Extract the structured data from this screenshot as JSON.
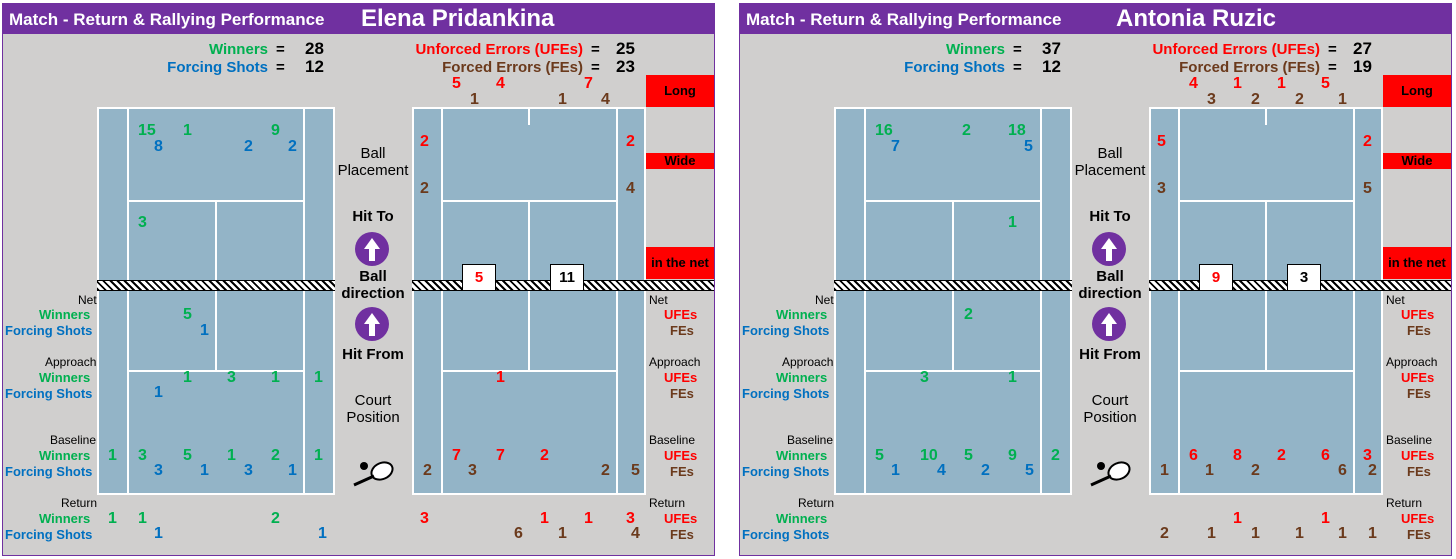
{
  "panels": [
    {
      "title": "Match - Return & Rallying Performance",
      "player": "Elena Pridankina",
      "summary": {
        "winners_label": "Winners",
        "winners": "28",
        "forcing_label": "Forcing Shots",
        "forcing": "12",
        "ufe_label": "Unforced Errors (UFEs)",
        "ufe": "25",
        "fe_label": "Forced Errors (FEs)",
        "fe": "23"
      },
      "eq": "=",
      "boxes": {
        "long": "Long",
        "wide": "Wide",
        "net": "in the net"
      },
      "mid": {
        "placement": "Ball Placement",
        "hit_to": "Hit To",
        "direction": "Ball direction",
        "hit_from": "Hit From",
        "court_position": "Court Position"
      },
      "rows": {
        "net": "Net",
        "approach": "Approach",
        "baseline": "Baseline",
        "return": "Return",
        "winners": "Winners",
        "forcing": "Forcing Shots",
        "ufes": "UFEs",
        "fes": "FEs"
      },
      "net_counts": [
        "5",
        "11"
      ],
      "left_nums": [
        {
          "v": "15",
          "c": "g"
        },
        {
          "v": "1",
          "c": "g"
        },
        {
          "v": "9",
          "c": "g"
        },
        {
          "v": "8",
          "c": "b"
        },
        {
          "v": "2",
          "c": "b"
        },
        {
          "v": "2",
          "c": "b"
        },
        {
          "v": "3",
          "c": "g"
        },
        {
          "v": "5",
          "c": "g"
        },
        {
          "v": "1",
          "c": "b"
        },
        {
          "v": "1",
          "c": "g"
        },
        {
          "v": "3",
          "c": "g"
        },
        {
          "v": "1",
          "c": "g"
        },
        {
          "v": "1",
          "c": "g"
        },
        {
          "v": "1",
          "c": "b"
        },
        {
          "v": "1",
          "c": "g"
        },
        {
          "v": "3",
          "c": "g"
        },
        {
          "v": "5",
          "c": "g"
        },
        {
          "v": "1",
          "c": "g"
        },
        {
          "v": "2",
          "c": "g"
        },
        {
          "v": "1",
          "c": "g"
        },
        {
          "v": "3",
          "c": "b"
        },
        {
          "v": "1",
          "c": "b"
        },
        {
          "v": "3",
          "c": "b"
        },
        {
          "v": "1",
          "c": "b"
        },
        {
          "v": "1",
          "c": "g"
        },
        {
          "v": "1",
          "c": "g"
        },
        {
          "v": "2",
          "c": "g"
        },
        {
          "v": "1",
          "c": "b"
        },
        {
          "v": "1",
          "c": "b"
        }
      ],
      "right_nums": [
        {
          "v": "5",
          "c": "r"
        },
        {
          "v": "4",
          "c": "r"
        },
        {
          "v": "7",
          "c": "r"
        },
        {
          "v": "1",
          "c": "br"
        },
        {
          "v": "1",
          "c": "br"
        },
        {
          "v": "4",
          "c": "br"
        },
        {
          "v": "2",
          "c": "r"
        },
        {
          "v": "2",
          "c": "r"
        },
        {
          "v": "2",
          "c": "br"
        },
        {
          "v": "4",
          "c": "br"
        },
        {
          "v": "1",
          "c": "r"
        },
        {
          "v": "7",
          "c": "r"
        },
        {
          "v": "7",
          "c": "r"
        },
        {
          "v": "2",
          "c": "r"
        },
        {
          "v": "2",
          "c": "br"
        },
        {
          "v": "3",
          "c": "br"
        },
        {
          "v": "2",
          "c": "br"
        },
        {
          "v": "5",
          "c": "br"
        },
        {
          "v": "3",
          "c": "r"
        },
        {
          "v": "1",
          "c": "r"
        },
        {
          "v": "1",
          "c": "r"
        },
        {
          "v": "3",
          "c": "r"
        },
        {
          "v": "6",
          "c": "br"
        },
        {
          "v": "1",
          "c": "br"
        },
        {
          "v": "4",
          "c": "br"
        }
      ]
    },
    {
      "title": "Match - Return & Rallying Performance",
      "player": "Antonia Ruzic",
      "summary": {
        "winners_label": "Winners",
        "winners": "37",
        "forcing_label": "Forcing Shots",
        "forcing": "12",
        "ufe_label": "Unforced Errors (UFEs)",
        "ufe": "27",
        "fe_label": "Forced Errors (FEs)",
        "fe": "19"
      },
      "eq": "=",
      "boxes": {
        "long": "Long",
        "wide": "Wide",
        "net": "in the net"
      },
      "mid": {
        "placement": "Ball Placement",
        "hit_to": "Hit To",
        "direction": "Ball direction",
        "hit_from": "Hit From",
        "court_position": "Court Position"
      },
      "rows": {
        "net": "Net",
        "approach": "Approach",
        "baseline": "Baseline",
        "return": "Return",
        "winners": "Winners",
        "forcing": "Forcing Shots",
        "ufes": "UFEs",
        "fes": "FEs"
      },
      "net_counts": [
        "9",
        "3"
      ],
      "left_nums": [
        {
          "v": "16",
          "c": "g"
        },
        {
          "v": "2",
          "c": "g"
        },
        {
          "v": "18",
          "c": "g"
        },
        {
          "v": "7",
          "c": "b"
        },
        {
          "v": "5",
          "c": "b"
        },
        {
          "v": "1",
          "c": "g"
        },
        {
          "v": "2",
          "c": "g"
        },
        {
          "v": "3",
          "c": "g"
        },
        {
          "v": "1",
          "c": "g"
        },
        {
          "v": "5",
          "c": "g"
        },
        {
          "v": "10",
          "c": "g"
        },
        {
          "v": "5",
          "c": "g"
        },
        {
          "v": "9",
          "c": "g"
        },
        {
          "v": "2",
          "c": "g"
        },
        {
          "v": "1",
          "c": "b"
        },
        {
          "v": "4",
          "c": "b"
        },
        {
          "v": "2",
          "c": "b"
        },
        {
          "v": "5",
          "c": "b"
        }
      ],
      "right_nums": [
        {
          "v": "4",
          "c": "r"
        },
        {
          "v": "1",
          "c": "r"
        },
        {
          "v": "1",
          "c": "r"
        },
        {
          "v": "5",
          "c": "r"
        },
        {
          "v": "3",
          "c": "br"
        },
        {
          "v": "2",
          "c": "br"
        },
        {
          "v": "2",
          "c": "br"
        },
        {
          "v": "1",
          "c": "br"
        },
        {
          "v": "5",
          "c": "r"
        },
        {
          "v": "2",
          "c": "r"
        },
        {
          "v": "3",
          "c": "br"
        },
        {
          "v": "5",
          "c": "br"
        },
        {
          "v": "6",
          "c": "r"
        },
        {
          "v": "8",
          "c": "r"
        },
        {
          "v": "2",
          "c": "r"
        },
        {
          "v": "6",
          "c": "r"
        },
        {
          "v": "3",
          "c": "r"
        },
        {
          "v": "1",
          "c": "br"
        },
        {
          "v": "1",
          "c": "br"
        },
        {
          "v": "2",
          "c": "br"
        },
        {
          "v": "6",
          "c": "br"
        },
        {
          "v": "2",
          "c": "br"
        },
        {
          "v": "1",
          "c": "r"
        },
        {
          "v": "1",
          "c": "r"
        },
        {
          "v": "2",
          "c": "br"
        },
        {
          "v": "1",
          "c": "br"
        },
        {
          "v": "1",
          "c": "br"
        },
        {
          "v": "1",
          "c": "br"
        },
        {
          "v": "1",
          "c": "br"
        },
        {
          "v": "1",
          "c": "br"
        }
      ]
    }
  ]
}
